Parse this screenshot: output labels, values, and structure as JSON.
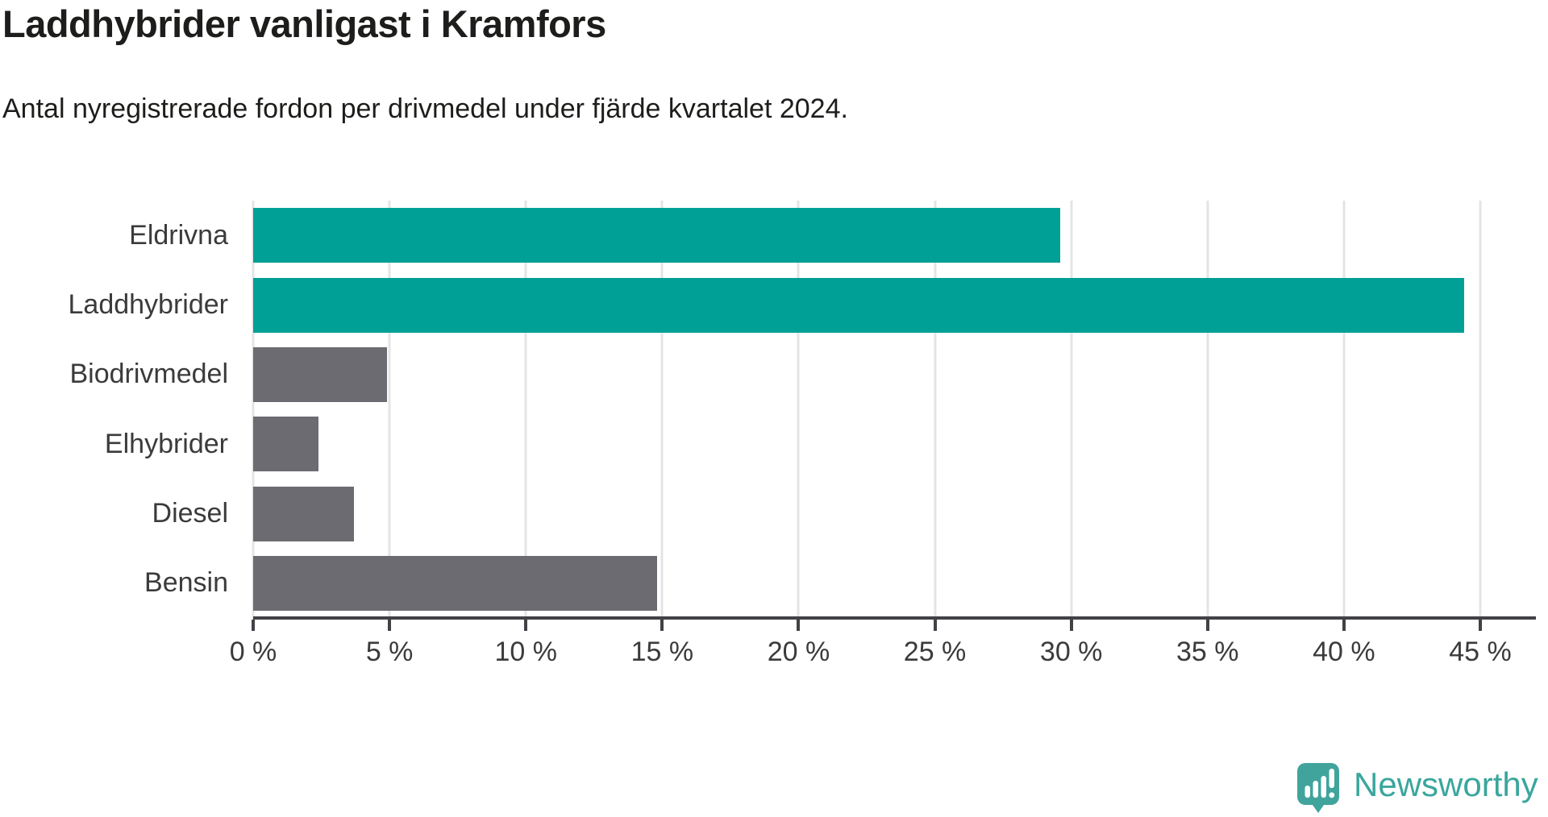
{
  "title": "Laddhybrider vanligast i Kramfors",
  "subtitle": "Antal nyregistrerade fordon per drivmedel under fjärde kvartalet 2024.",
  "branding": {
    "name": "Newsworthy",
    "icon": "newsworthy-speech-bubble-bar-chart-icon",
    "text_color": "#3aa69d",
    "icon_color": "#41a49c"
  },
  "colors": {
    "highlight_bar": "#00a096",
    "default_bar": "#6b6b71",
    "gridline": "#e4e4e4",
    "axis": "#414146",
    "title_text": "#1d1d1b",
    "label_text": "#3b3b3b"
  },
  "chart_data": {
    "type": "bar",
    "orientation": "horizontal",
    "title": "Laddhybrider vanligast i Kramfors",
    "subtitle": "Antal nyregistrerade fordon per drivmedel under fjärde kvartalet 2024.",
    "categories": [
      "Eldrivna",
      "Laddhybrider",
      "Biodrivmedel",
      "Elhybrider",
      "Diesel",
      "Bensin"
    ],
    "values": [
      29.6,
      44.4,
      4.9,
      2.4,
      3.7,
      14.8
    ],
    "unit": "%",
    "bar_colors": [
      "#00a096",
      "#00a096",
      "#6b6b71",
      "#6b6b71",
      "#6b6b71",
      "#6b6b71"
    ],
    "highlighted_categories": [
      "Eldrivna",
      "Laddhybrider"
    ],
    "xlim": [
      0,
      45
    ],
    "xtick_values": [
      0,
      5,
      10,
      15,
      20,
      25,
      30,
      35,
      40,
      45
    ],
    "xticks": [
      "0 %",
      "5 %",
      "10 %",
      "15 %",
      "20 %",
      "25 %",
      "30 %",
      "35 %",
      "40 %",
      "45 %"
    ],
    "xlabel": "",
    "ylabel": "",
    "grid": "vertical",
    "legend": "none"
  }
}
